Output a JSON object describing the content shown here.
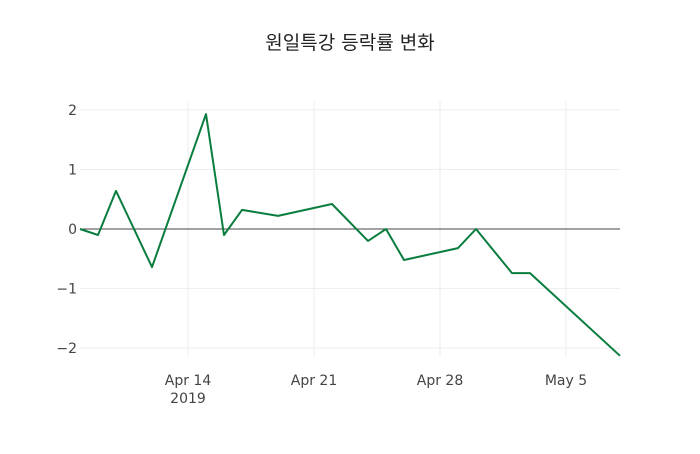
{
  "chart_data": {
    "type": "line",
    "title": "원일특강 등락률 변화",
    "xlabel": "",
    "ylabel": "",
    "x": [
      "2019-04-08",
      "2019-04-09",
      "2019-04-10",
      "2019-04-12",
      "2019-04-15",
      "2019-04-16",
      "2019-04-17",
      "2019-04-19",
      "2019-04-22",
      "2019-04-24",
      "2019-04-25",
      "2019-04-26",
      "2019-04-29",
      "2019-04-30",
      "2019-05-02",
      "2019-05-03",
      "2019-05-08"
    ],
    "series": [
      {
        "name": "등락률",
        "color": "#0a7d3e",
        "values": [
          0,
          -0.1,
          0.64,
          -0.64,
          1.93,
          -0.1,
          0.32,
          0.22,
          0.42,
          -0.2,
          0,
          -0.52,
          -0.32,
          0,
          -0.74,
          -0.74,
          -2.13
        ]
      }
    ],
    "xlim": [
      "2019-04-08",
      "2019-05-08"
    ],
    "ylim": [
      -2.15,
      2.15
    ],
    "xticks": [
      {
        "date": "2019-04-14",
        "label": "Apr 14",
        "sublabel": "2019"
      },
      {
        "date": "2019-04-21",
        "label": "Apr 21"
      },
      {
        "date": "2019-04-28",
        "label": "Apr 28"
      },
      {
        "date": "2019-05-05",
        "label": "May 5"
      }
    ],
    "yticks": [
      {
        "value": 2,
        "label": "2"
      },
      {
        "value": 1,
        "label": "1"
      },
      {
        "value": 0,
        "label": "0"
      },
      {
        "value": -1,
        "label": "−1"
      },
      {
        "value": -2,
        "label": "−2"
      }
    ],
    "grid": true,
    "legend": "none"
  }
}
